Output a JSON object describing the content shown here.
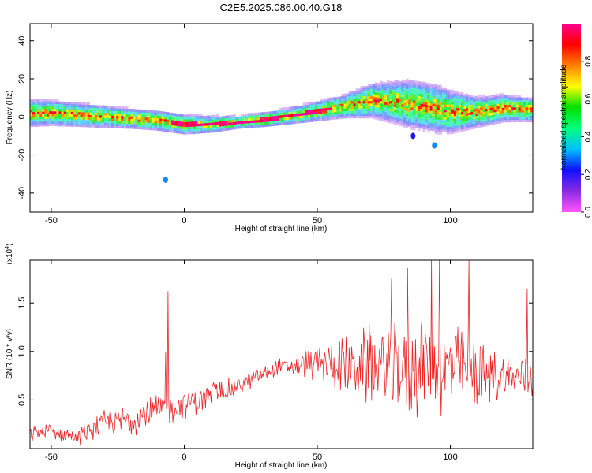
{
  "title": "C2E5.2025.086.00.40.G18",
  "colors": {
    "snr_line": "#ee2222",
    "background": "#ffffff"
  },
  "chart_data": [
    {
      "type": "heatmap",
      "panel": "top",
      "xlabel": "Height of straight line (km)",
      "ylabel": "Frequency (Hz)",
      "xlim": [
        -58,
        131
      ],
      "ylim": [
        -50,
        49
      ],
      "x_ticks": [
        "-50",
        "0",
        "50",
        "100"
      ],
      "y_ticks": [
        "-40",
        "-20",
        "0",
        "20",
        "40"
      ],
      "grid": false,
      "colorbar": {
        "label": "Normalized spectral amplitude",
        "range": [
          0.0,
          1.0
        ],
        "ticks": [
          "0.0",
          "0.2",
          "0.4",
          "0.6",
          "0.8"
        ],
        "colormap": [
          "#ff55ff",
          "#8a2be2",
          "#1010ff",
          "#00bfff",
          "#00ff80",
          "#00e000",
          "#ffff00",
          "#ff8000",
          "#ff0000",
          "#ff0090"
        ]
      },
      "ridge_center_hz": {
        "x": [
          -58,
          -50,
          -40,
          -30,
          -20,
          -10,
          0,
          10,
          20,
          30,
          40,
          50,
          60,
          70,
          80,
          90,
          100,
          110,
          120,
          131
        ],
        "y": [
          1.5,
          1.5,
          0.5,
          -0.5,
          -1.5,
          -2.5,
          -4.5,
          -4.5,
          -3.5,
          -2,
          0,
          2.5,
          5,
          8,
          7,
          5,
          2,
          2,
          4,
          3
        ]
      },
      "ridge_width_hz": {
        "x": [
          -58,
          -40,
          -20,
          0,
          20,
          40,
          60,
          70,
          85,
          95,
          110,
          131
        ],
        "y": [
          8,
          7,
          6,
          6,
          4,
          5,
          7,
          10,
          14,
          14,
          9,
          7
        ]
      },
      "isolated_blobs": [
        {
          "x": -7,
          "y": -33,
          "amplitude": 0.3
        },
        {
          "x": 94,
          "y": -15,
          "amplitude": 0.3
        },
        {
          "x": 86,
          "y": -10,
          "amplitude": 0.2
        }
      ]
    },
    {
      "type": "line",
      "panel": "bottom",
      "xlabel": "Height of straight line (km)",
      "ylabel": "SNR (10 * v/v)",
      "y_multiplier": "(x10^4)",
      "xlim": [
        -58,
        131
      ],
      "ylim": [
        0,
        19400
      ],
      "x_ticks": [
        "-50",
        "0",
        "50",
        "100"
      ],
      "y_ticks": [
        "0.5",
        "1.0",
        "1.5"
      ],
      "grid": false,
      "series": [
        {
          "baseline": {
            "x": [
              -58,
              -50,
              -40,
              -35,
              -30,
              -20,
              -10,
              0,
              10,
              20,
              30,
              35,
              40,
              50,
              60,
              70,
              80,
              90,
              100,
              110,
              120,
              131
            ],
            "y": [
              1500,
              1800,
              1200,
              2000,
              2600,
              3000,
              3800,
              4600,
              5500,
              6400,
              7700,
              8400,
              8500,
              8800,
              8600,
              8500,
              8400,
              8500,
              8300,
              7600,
              7400,
              7200
            ]
          },
          "spread": {
            "x": [
              -58,
              -40,
              -30,
              -20,
              0,
              20,
              30,
              40,
              50,
              60,
              70,
              80,
              90,
              100,
              110,
              120,
              131
            ],
            "y": [
              900,
              900,
              1500,
              1800,
              1700,
              1100,
              800,
              1000,
              2000,
              3000,
              4500,
              5500,
              6000,
              5000,
              3500,
              2500,
              2200
            ]
          },
          "spikes": [
            {
              "x": -6,
              "y": 16200
            },
            {
              "x": -7,
              "y": 10000
            },
            {
              "x": 78,
              "y": 17500
            },
            {
              "x": 84,
              "y": 18600
            },
            {
              "x": 93,
              "y": 19400
            },
            {
              "x": 96,
              "y": 19400
            },
            {
              "x": 107,
              "y": 19400
            },
            {
              "x": 129,
              "y": 16500
            }
          ]
        }
      ]
    }
  ]
}
